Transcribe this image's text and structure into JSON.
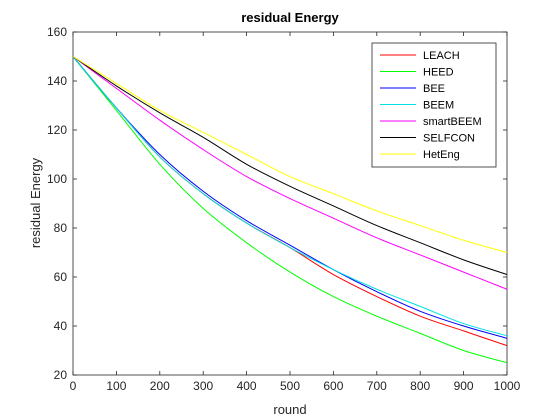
{
  "chart_data": {
    "type": "line",
    "title": "residual Energy",
    "xlabel": "round",
    "ylabel": "residual Energy",
    "xlim": [
      0,
      1000
    ],
    "ylim": [
      20,
      160
    ],
    "xticks": [
      0,
      100,
      200,
      300,
      400,
      500,
      600,
      700,
      800,
      900,
      1000
    ],
    "yticks": [
      20,
      40,
      60,
      80,
      100,
      120,
      140,
      160
    ],
    "grid": false,
    "legend_position": "top-right",
    "x": [
      0,
      100,
      200,
      300,
      400,
      500,
      600,
      700,
      800,
      900,
      1000
    ],
    "series": [
      {
        "name": "LEACH",
        "color": "#ff0000",
        "values": [
          150,
          129,
          109,
          94,
          82,
          72,
          61,
          52,
          44,
          38,
          32
        ]
      },
      {
        "name": "HEED",
        "color": "#00ff00",
        "values": [
          150,
          128,
          106,
          88,
          74,
          62,
          52,
          44,
          37,
          30,
          25
        ]
      },
      {
        "name": "BEE",
        "color": "#0000ff",
        "values": [
          150,
          129,
          110,
          95,
          83,
          73,
          63,
          54,
          46,
          40,
          35
        ]
      },
      {
        "name": "BEEM",
        "color": "#00e0e0",
        "values": [
          150,
          129,
          109,
          94,
          82,
          72,
          63,
          55,
          48,
          41,
          36
        ]
      },
      {
        "name": "smartBEEM",
        "color": "#ff00ff",
        "values": [
          150,
          137,
          124,
          112,
          101,
          92,
          84,
          76,
          69,
          62,
          55
        ]
      },
      {
        "name": "SELFCON",
        "color": "#000000",
        "values": [
          150,
          138,
          127,
          117,
          106,
          97,
          89,
          81,
          74,
          67,
          61
        ]
      },
      {
        "name": "HetEng",
        "color": "#ffff00",
        "values": [
          150,
          139,
          128,
          119,
          110,
          101,
          94,
          87,
          81,
          75,
          70
        ]
      }
    ]
  }
}
